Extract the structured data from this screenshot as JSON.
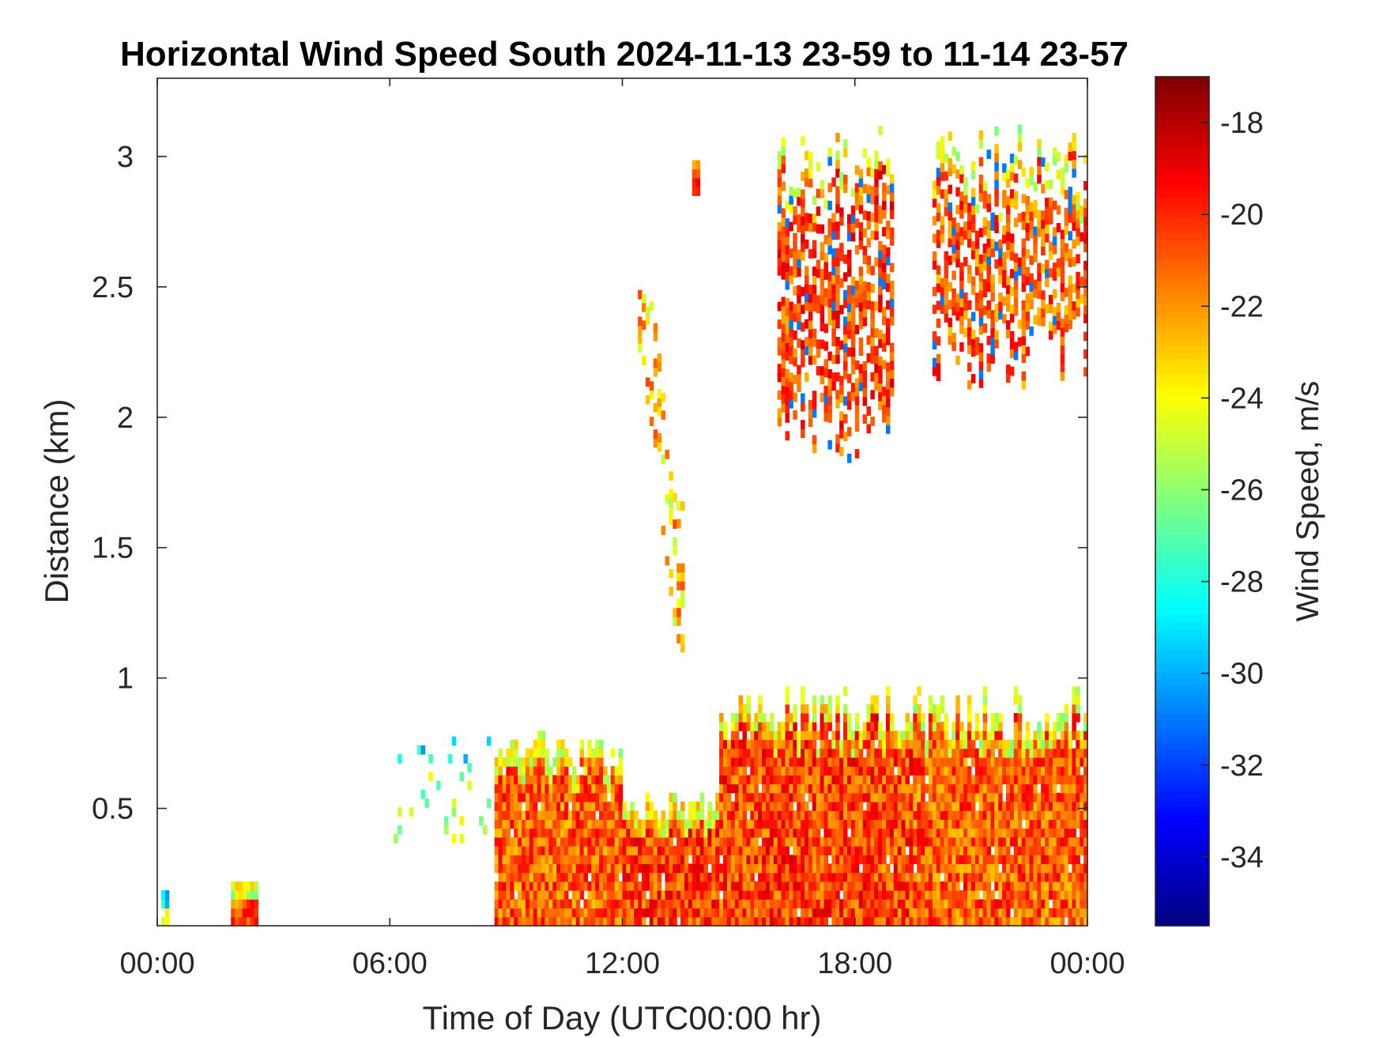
{
  "chart_data": {
    "type": "heatmap",
    "title": "Horizontal Wind Speed South 2024-11-13 23-59 to 11-14 23-57",
    "xlabel": "Time of Day (UTC00:00 hr)",
    "ylabel": "Distance (km)",
    "x_range_hours": [
      0,
      24
    ],
    "y_range_km": [
      0.05,
      3.3
    ],
    "x_ticks": [
      {
        "value": 0,
        "label": "00:00"
      },
      {
        "value": 6,
        "label": "06:00"
      },
      {
        "value": 12,
        "label": "12:00"
      },
      {
        "value": 18,
        "label": "18:00"
      },
      {
        "value": 24,
        "label": "00:00"
      }
    ],
    "y_ticks": [
      {
        "value": 0.5,
        "label": "0.5"
      },
      {
        "value": 1,
        "label": "1"
      },
      {
        "value": 1.5,
        "label": "1.5"
      },
      {
        "value": 2,
        "label": "2"
      },
      {
        "value": 2.5,
        "label": "2.5"
      },
      {
        "value": 3,
        "label": "3"
      }
    ],
    "colorbar": {
      "label": "Wind Speed, m/s",
      "range": [
        -35.5,
        -17.0
      ],
      "colormap": "jet",
      "ticks": [
        {
          "value": -18,
          "label": "-18"
        },
        {
          "value": -20,
          "label": "-20"
        },
        {
          "value": -22,
          "label": "-22"
        },
        {
          "value": -24,
          "label": "-24"
        },
        {
          "value": -26,
          "label": "-26"
        },
        {
          "value": -28,
          "label": "-28"
        },
        {
          "value": -30,
          "label": "-30"
        },
        {
          "value": -32,
          "label": "-32"
        },
        {
          "value": -34,
          "label": "-34"
        }
      ]
    },
    "regions": [
      {
        "name": "early-patch-1",
        "x": [
          0.1,
          0.3
        ],
        "y": [
          0.05,
          0.17
        ],
        "value": -25.5
      },
      {
        "name": "early-patch-2",
        "x": [
          1.9,
          2.6
        ],
        "y": [
          0.05,
          0.2
        ],
        "value": -21.0
      },
      {
        "name": "scatter-pre-dawn",
        "x": [
          6.0,
          8.7
        ],
        "y": [
          0.3,
          0.75
        ],
        "value": -25.5
      },
      {
        "name": "boundary-layer-morning",
        "x": [
          8.7,
          12.0
        ],
        "y": [
          0.05,
          0.78
        ],
        "value": -21.0
      },
      {
        "name": "boundary-layer-midday-dip",
        "x": [
          12.0,
          14.5
        ],
        "y": [
          0.05,
          0.55
        ],
        "value": -20.5
      },
      {
        "name": "boundary-layer-afternoon",
        "x": [
          14.5,
          19.5
        ],
        "y": [
          0.05,
          0.95
        ],
        "value": -20.5
      },
      {
        "name": "boundary-layer-evening",
        "x": [
          19.5,
          24.0
        ],
        "y": [
          0.05,
          0.95
        ],
        "value": -21.0
      },
      {
        "name": "rising-plume",
        "x": [
          12.4,
          13.6
        ],
        "y": [
          1.1,
          2.5
        ],
        "value": -23.0
      },
      {
        "name": "upper-small-patch",
        "x": [
          13.8,
          14.0
        ],
        "y": [
          2.85,
          2.98
        ],
        "value": -19.0
      },
      {
        "name": "upper-layer-evening",
        "x": [
          16.0,
          19.0
        ],
        "y": [
          1.78,
          3.1
        ],
        "value": -20.5
      },
      {
        "name": "upper-layer-night",
        "x": [
          20.0,
          24.0
        ],
        "y": [
          2.05,
          3.1
        ],
        "value": -21.0
      }
    ]
  }
}
